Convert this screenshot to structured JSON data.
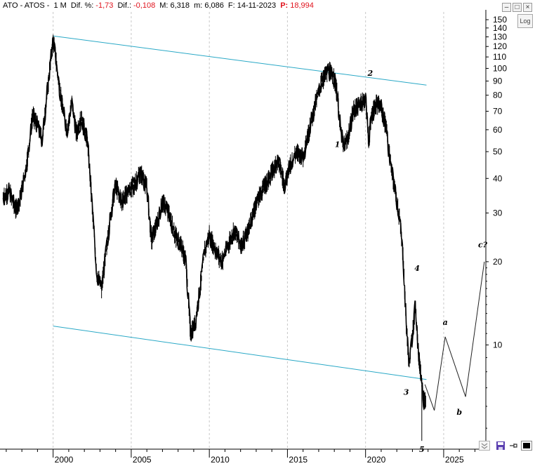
{
  "header": {
    "ticker": "ATO - ATOS -",
    "period": "1 M",
    "dif_pct_label": "Dif. %:",
    "dif_pct_value": "-1,73",
    "dif_label": "Dif.:",
    "dif_value": "-0,108",
    "max_label": "M:",
    "max_value": "6,318",
    "min_label": "m:",
    "min_value": "6,086",
    "date_label": "F:",
    "date_value": "14-11-2023",
    "price_label": "P:",
    "price_value": "18,994"
  },
  "window_buttons": {
    "minimize": "–",
    "restore": "□",
    "close": "×"
  },
  "log_button": "Log",
  "bottom_toolbar": {
    "down_icon": "down-chevrons-icon",
    "save_icon": "save-icon",
    "pin_icon": "pin-icon",
    "color_icon": "color-swatch-icon"
  },
  "colors": {
    "price": "#000000",
    "trendline": "#29a8c6",
    "grid": "#c8c8c8",
    "negative": "#e0141e"
  },
  "chart_data": {
    "type": "line",
    "scale": "log",
    "x_range": [
      1996.6,
      2027.7
    ],
    "y_range": [
      4.2,
      160
    ],
    "x_tick_labels": [
      "2000",
      "2005",
      "2010",
      "2015",
      "2020",
      "2025"
    ],
    "x_ticks": [
      2000,
      2005,
      2010,
      2015,
      2020,
      2025
    ],
    "y_tick_labels": [
      "150",
      "140",
      "130",
      "120",
      "110",
      "100",
      "90",
      "80",
      "70",
      "60",
      "50",
      "40",
      "30",
      "20",
      "10"
    ],
    "y_ticks": [
      150,
      140,
      130,
      120,
      110,
      100,
      90,
      80,
      70,
      60,
      50,
      40,
      30,
      20,
      10
    ],
    "price_series": [
      [
        1996.8,
        34
      ],
      [
        1997.2,
        36
      ],
      [
        1997.6,
        31
      ],
      [
        1997.9,
        34
      ],
      [
        1998.3,
        45
      ],
      [
        1998.7,
        68
      ],
      [
        1999.0,
        62
      ],
      [
        1999.3,
        55
      ],
      [
        1999.6,
        80
      ],
      [
        2000.0,
        128
      ],
      [
        2000.3,
        95
      ],
      [
        2000.6,
        72
      ],
      [
        2000.9,
        60
      ],
      [
        2001.2,
        75
      ],
      [
        2001.5,
        58
      ],
      [
        2001.8,
        66
      ],
      [
        2002.2,
        55
      ],
      [
        2002.5,
        32
      ],
      [
        2002.8,
        18
      ],
      [
        2003.1,
        16
      ],
      [
        2003.4,
        22
      ],
      [
        2003.7,
        30
      ],
      [
        2004.0,
        38
      ],
      [
        2004.4,
        33
      ],
      [
        2004.8,
        36
      ],
      [
        2005.2,
        38
      ],
      [
        2005.6,
        42
      ],
      [
        2006.0,
        37
      ],
      [
        2006.3,
        24
      ],
      [
        2006.7,
        28
      ],
      [
        2007.0,
        33
      ],
      [
        2007.4,
        30
      ],
      [
        2007.8,
        25
      ],
      [
        2008.2,
        23
      ],
      [
        2008.5,
        20
      ],
      [
        2008.8,
        11
      ],
      [
        2009.1,
        12
      ],
      [
        2009.4,
        16
      ],
      [
        2009.7,
        22
      ],
      [
        2010.0,
        25
      ],
      [
        2010.4,
        22
      ],
      [
        2010.8,
        20
      ],
      [
        2011.2,
        23
      ],
      [
        2011.6,
        26
      ],
      [
        2012.0,
        23
      ],
      [
        2012.4,
        25
      ],
      [
        2012.8,
        30
      ],
      [
        2013.2,
        35
      ],
      [
        2013.6,
        38
      ],
      [
        2014.0,
        42
      ],
      [
        2014.4,
        47
      ],
      [
        2014.8,
        38
      ],
      [
        2015.2,
        45
      ],
      [
        2015.6,
        50
      ],
      [
        2016.0,
        48
      ],
      [
        2016.4,
        60
      ],
      [
        2016.8,
        75
      ],
      [
        2017.2,
        90
      ],
      [
        2017.6,
        99
      ],
      [
        2018.0,
        92
      ],
      [
        2018.2,
        80
      ],
      [
        2018.4,
        60
      ],
      [
        2018.6,
        52
      ],
      [
        2018.9,
        57
      ],
      [
        2019.2,
        70
      ],
      [
        2019.6,
        74
      ],
      [
        2020.0,
        78
      ],
      [
        2020.2,
        55
      ],
      [
        2020.4,
        68
      ],
      [
        2020.7,
        75
      ],
      [
        2021.0,
        72
      ],
      [
        2021.3,
        62
      ],
      [
        2021.6,
        45
      ],
      [
        2021.9,
        36
      ],
      [
        2022.2,
        28
      ],
      [
        2022.4,
        21
      ],
      [
        2022.6,
        12
      ],
      [
        2022.8,
        8.5
      ],
      [
        2023.0,
        11
      ],
      [
        2023.2,
        14
      ],
      [
        2023.4,
        9
      ],
      [
        2023.6,
        7.5
      ],
      [
        2023.7,
        6.4
      ],
      [
        2023.85,
        6.2
      ]
    ],
    "price_low": [
      2023.6,
      4.5
    ],
    "trendlines": [
      {
        "start": [
          2000.0,
          131
        ],
        "end": [
          2023.9,
          87
        ]
      },
      {
        "start": [
          2000.0,
          11.7
        ],
        "end": [
          2023.9,
          7.5
        ]
      }
    ],
    "projection": [
      [
        2023.8,
        7.2
      ],
      [
        2024.4,
        5.8
      ],
      [
        2025.1,
        10.7
      ],
      [
        2026.4,
        6.5
      ],
      [
        2027.6,
        20
      ]
    ],
    "wave_labels": [
      {
        "text": "1",
        "x": 2018.2,
        "y": 52
      },
      {
        "text": "2",
        "x": 2020.3,
        "y": 94
      },
      {
        "text": "3",
        "x": 2022.6,
        "y": 6.6
      },
      {
        "text": "4",
        "x": 2023.3,
        "y": 18.5
      },
      {
        "text": "5",
        "x": 2023.6,
        "y": 4.1
      },
      {
        "text": "a",
        "x": 2025.1,
        "y": 11.8
      },
      {
        "text": "b",
        "x": 2026.0,
        "y": 5.6
      },
      {
        "text": "c?",
        "x": 2027.5,
        "y": 22.5
      }
    ]
  }
}
